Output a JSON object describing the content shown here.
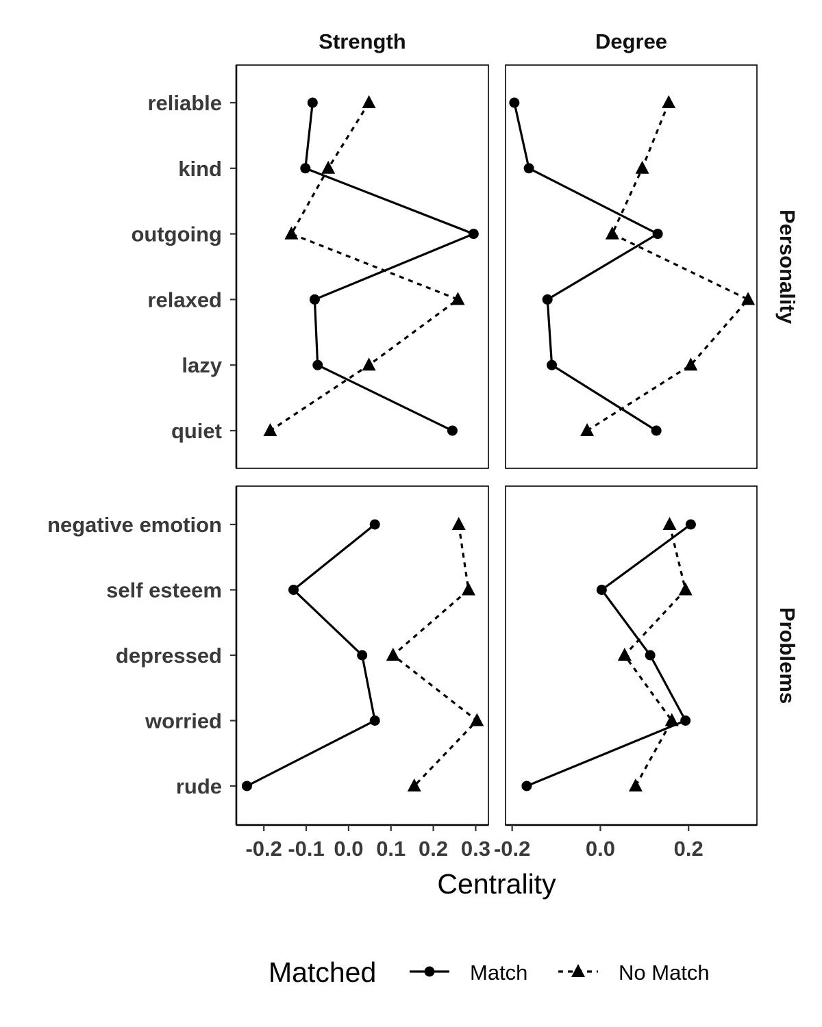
{
  "chart_data": {
    "type": "line",
    "orientation": "horizontal",
    "xlabel": "Centrality",
    "columns": [
      {
        "name": "Strength",
        "ticks": [
          -0.2,
          -0.1,
          0.0,
          0.1,
          0.2,
          0.3
        ],
        "tick_labels": [
          "-0.2",
          "-0.1",
          "0.0",
          "0.1",
          "0.2",
          "0.3"
        ],
        "xlim": [
          -0.265,
          0.33
        ]
      },
      {
        "name": "Degree",
        "ticks": [
          -0.2,
          0.0,
          0.2
        ],
        "tick_labels": [
          "-0.2",
          "0.0",
          "0.2"
        ],
        "xlim": [
          -0.215,
          0.355
        ]
      }
    ],
    "rows": [
      {
        "name": "Personality",
        "categories": [
          "reliable",
          "kind",
          "outgoing",
          "relaxed",
          "lazy",
          "quiet"
        ]
      },
      {
        "name": "Problems",
        "categories": [
          "negative emotion",
          "self esteem",
          "depressed",
          "worried",
          "rude"
        ]
      }
    ],
    "series": [
      {
        "name": "Match",
        "line": "solid",
        "marker": "circle"
      },
      {
        "name": "No Match",
        "line": "dashed",
        "marker": "triangle"
      }
    ],
    "values": {
      "Strength": {
        "Personality": {
          "Match": [
            -0.085,
            -0.102,
            0.295,
            -0.08,
            -0.073,
            0.245
          ],
          "No Match": [
            0.048,
            -0.048,
            -0.135,
            0.258,
            0.048,
            -0.185
          ]
        },
        "Problems": {
          "Match": [
            0.062,
            -0.13,
            0.032,
            0.062,
            -0.24
          ],
          "No Match": [
            0.26,
            0.283,
            0.105,
            0.303,
            0.155
          ]
        }
      },
      "Degree": {
        "Personality": {
          "Match": [
            -0.195,
            -0.162,
            0.13,
            -0.12,
            -0.11,
            0.127
          ],
          "No Match": [
            0.155,
            0.095,
            0.027,
            0.335,
            0.205,
            -0.03
          ]
        },
        "Problems": {
          "Match": [
            0.205,
            0.003,
            0.113,
            0.193,
            -0.167
          ],
          "No Match": [
            0.157,
            0.193,
            0.055,
            0.162,
            0.08
          ]
        }
      }
    },
    "legend": {
      "title": "Matched",
      "position": "bottom",
      "labels": [
        "Match",
        "No Match"
      ]
    },
    "grid": false,
    "colors": {
      "line": "#000000",
      "text": "#3a3a3a"
    }
  }
}
